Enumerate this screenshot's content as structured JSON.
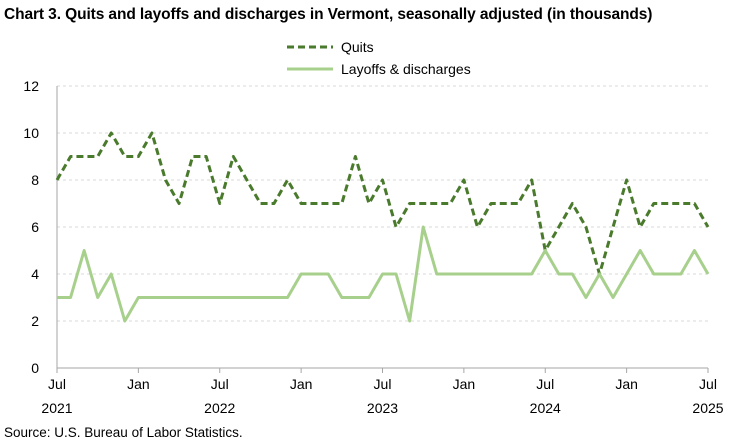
{
  "title": "Chart 3. Quits and layoffs and discharges in Vermont, seasonally adjusted (in thousands)",
  "source": "Source: U.S. Bureau of Labor Statistics.",
  "chart_data": {
    "type": "line",
    "title": "Chart 3. Quits and layoffs and discharges in Vermont, seasonally adjusted (in thousands)",
    "xlabel": "",
    "ylabel": "",
    "ylim": [
      0,
      12
    ],
    "yticks": [
      "0",
      "2",
      "4",
      "6",
      "8",
      "10",
      "12"
    ],
    "x_start": "2021-07",
    "x_end": "2025-07",
    "x_ticks": [
      {
        "month": "Jul",
        "year": "2021",
        "date": "2021-07"
      },
      {
        "month": "Jan",
        "year": "",
        "date": "2022-01"
      },
      {
        "month": "Jul",
        "year": "2022",
        "date": "2022-07"
      },
      {
        "month": "Jan",
        "year": "",
        "date": "2023-01"
      },
      {
        "month": "Jul",
        "year": "2023",
        "date": "2023-07"
      },
      {
        "month": "Jan",
        "year": "",
        "date": "2024-01"
      },
      {
        "month": "Jul",
        "year": "2024",
        "date": "2024-07"
      },
      {
        "month": "Jan",
        "year": "",
        "date": "2025-01"
      },
      {
        "month": "Jul",
        "year": "2025",
        "date": "2025-07"
      }
    ],
    "grid": true,
    "legend_position": "top-center",
    "series": [
      {
        "name": "Quits",
        "color": "#4a7a2c",
        "style": "dashed",
        "values": [
          8,
          9,
          9,
          9,
          10,
          9,
          9,
          10,
          8,
          7,
          9,
          9,
          7,
          9,
          8,
          7,
          7,
          8,
          7,
          7,
          7,
          7,
          9,
          7,
          8,
          6,
          7,
          7,
          7,
          7,
          8,
          6,
          7,
          7,
          7,
          8,
          5,
          6,
          7,
          6,
          4,
          6,
          8,
          6,
          7,
          7,
          7,
          7,
          6
        ]
      },
      {
        "name": "Layoffs & discharges",
        "color": "#a8d08d",
        "style": "solid",
        "values": [
          3,
          3,
          5,
          3,
          4,
          2,
          3,
          3,
          3,
          3,
          3,
          3,
          3,
          3,
          3,
          3,
          3,
          3,
          4,
          4,
          4,
          3,
          3,
          3,
          4,
          4,
          2,
          6,
          4,
          4,
          4,
          4,
          4,
          4,
          4,
          4,
          5,
          4,
          4,
          3,
          4,
          3,
          4,
          5,
          4,
          4,
          4,
          5,
          4
        ]
      }
    ]
  }
}
